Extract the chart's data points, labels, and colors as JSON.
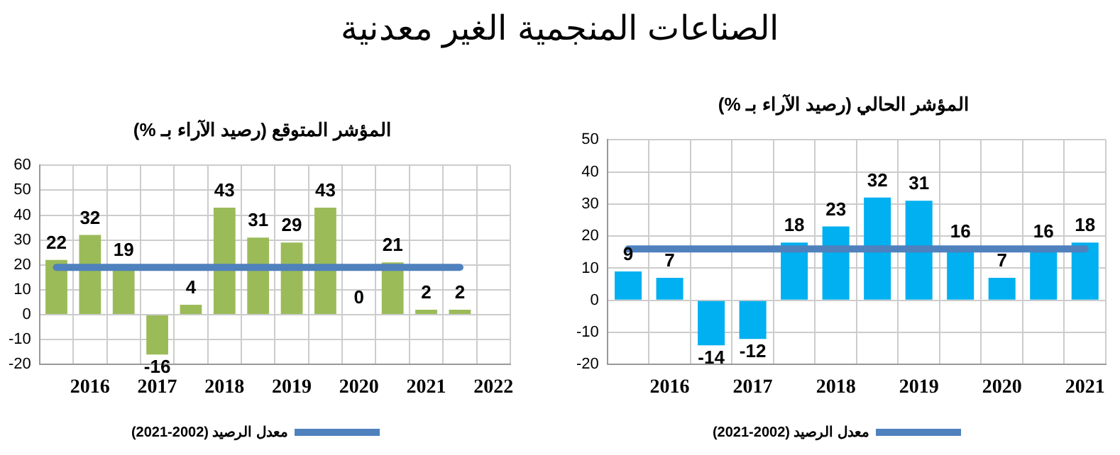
{
  "chart_data": [
    {
      "type": "other",
      "title": "الصناعات المنجمية الغير معدنية"
    },
    {
      "type": "bar",
      "title": "المؤشر المتوقع (رصيد الآراء بـ %)",
      "categories": [
        null,
        "2016",
        null,
        "2017",
        null,
        "2018",
        null,
        "2019",
        null,
        "2020",
        null,
        "2021",
        null,
        "2022"
      ],
      "ylim": [
        -20,
        60
      ],
      "yticks": [
        -20,
        -10,
        0,
        10,
        20,
        30,
        40,
        50,
        60
      ],
      "grid": true,
      "legend": "bottom",
      "series": [
        {
          "color": "#9bbb59",
          "values": [
            22,
            32,
            19,
            -16,
            4,
            43,
            31,
            29,
            43,
            0,
            21,
            2,
            2,
            null
          ],
          "value_labels": [
            "22",
            "32",
            "19",
            "-16",
            "4",
            "43",
            "31",
            "29",
            "43",
            "0",
            "21",
            "2",
            "2",
            null
          ]
        },
        {
          "type": "line",
          "name": "معدل الرصيد (2002-2021)",
          "color": "#4f81bd",
          "values": [
            19,
            19,
            19,
            19,
            19,
            19,
            19,
            19,
            19,
            19,
            19,
            19,
            19,
            null
          ]
        }
      ]
    },
    {
      "type": "bar",
      "title": "المؤشر الحالي (رصيد الآراء بـ %)",
      "categories": [
        null,
        "2016",
        null,
        "2017",
        null,
        "2018",
        null,
        "2019",
        null,
        "2020",
        null,
        "2021"
      ],
      "ylim": [
        -20,
        50
      ],
      "yticks": [
        -20,
        -10,
        0,
        10,
        20,
        30,
        40,
        50
      ],
      "grid": true,
      "legend": "bottom",
      "series": [
        {
          "color": "#00b0f0",
          "values": [
            9,
            7,
            -14,
            -12,
            18,
            23,
            32,
            31,
            16,
            7,
            16,
            18
          ],
          "value_labels": [
            "9",
            "7",
            "-14",
            "-12",
            "18",
            "23",
            "32",
            "31",
            "16",
            "7",
            "16",
            "18"
          ]
        },
        {
          "type": "line",
          "name": "معدل الرصيد (2002-2021)",
          "color": "#4f81bd",
          "values": [
            16,
            16,
            16,
            16,
            16,
            16,
            16,
            16,
            16,
            16,
            16,
            16
          ]
        }
      ]
    }
  ]
}
